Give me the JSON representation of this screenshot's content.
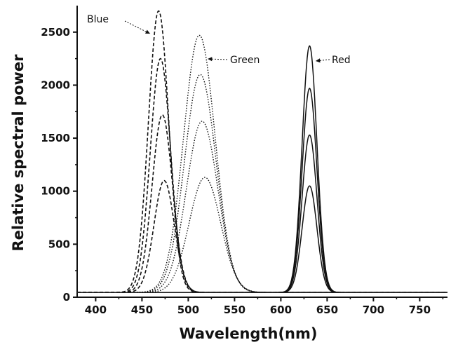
{
  "chart_data": {
    "type": "line",
    "title": "",
    "xlabel": "Wavelength(nm)",
    "ylabel": "Relative spectral power",
    "xlim": [
      380,
      780
    ],
    "ylim": [
      0,
      2750
    ],
    "xticks": [
      "400",
      "450",
      "500",
      "550",
      "600",
      "650",
      "700",
      "750"
    ],
    "yticks": [
      "0",
      "500",
      "1000",
      "1500",
      "2000",
      "2500"
    ],
    "grid": false,
    "baseline": 45,
    "groups": [
      {
        "label": "Blue",
        "style": "dashed",
        "curves": [
          {
            "peak_x": 468,
            "peak_y": 2700,
            "sigma": 11
          },
          {
            "peak_x": 470,
            "peak_y": 2250,
            "sigma": 11
          },
          {
            "peak_x": 472,
            "peak_y": 1720,
            "sigma": 11
          },
          {
            "peak_x": 474,
            "peak_y": 1100,
            "sigma": 11
          }
        ]
      },
      {
        "label": "Green",
        "style": "dotted",
        "curves": [
          {
            "peak_x": 512,
            "peak_y": 2470,
            "sigma": 17
          },
          {
            "peak_x": 513,
            "peak_y": 2100,
            "sigma": 17
          },
          {
            "peak_x": 515,
            "peak_y": 1660,
            "sigma": 17
          },
          {
            "peak_x": 518,
            "peak_y": 1130,
            "sigma": 17
          }
        ]
      },
      {
        "label": "Red",
        "style": "solid",
        "curves": [
          {
            "peak_x": 631,
            "peak_y": 2370,
            "sigma": 8
          },
          {
            "peak_x": 631,
            "peak_y": 1970,
            "sigma": 8
          },
          {
            "peak_x": 631,
            "peak_y": 1530,
            "sigma": 8
          },
          {
            "peak_x": 631,
            "peak_y": 1050,
            "sigma": 8
          }
        ]
      }
    ]
  }
}
